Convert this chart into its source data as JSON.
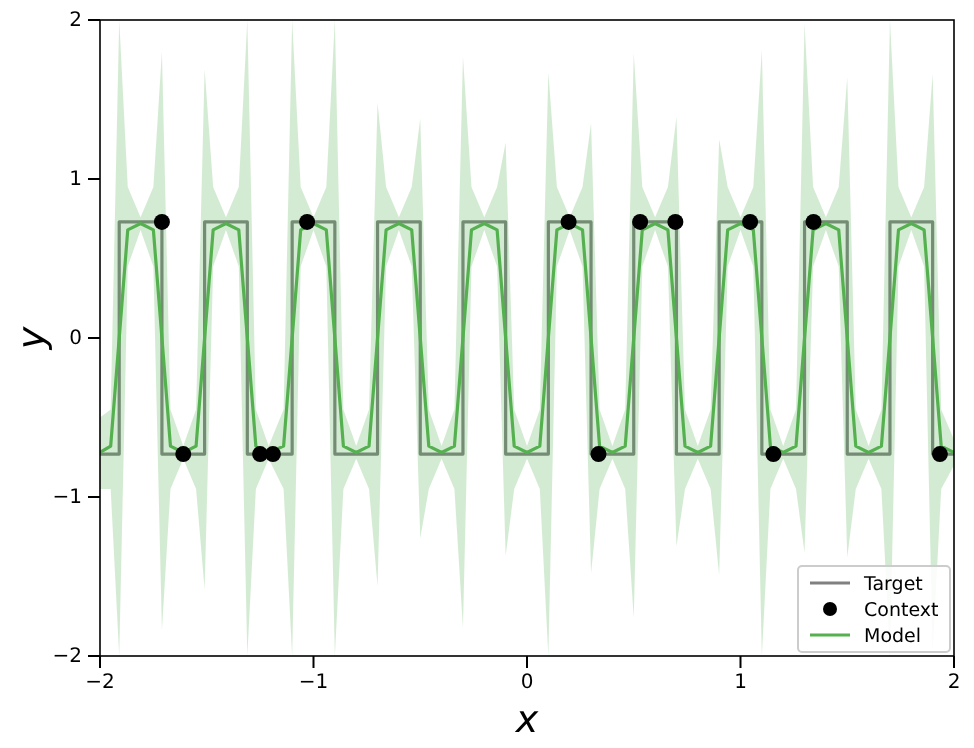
{
  "chart_data": {
    "type": "line",
    "xlabel": "x",
    "ylabel": "y",
    "xlim": [
      -2,
      2
    ],
    "ylim": [
      -2,
      2
    ],
    "xticks": [
      -2,
      -1,
      0,
      1,
      2
    ],
    "yticks": [
      -2,
      -1,
      0,
      1,
      2
    ],
    "grid": false,
    "legend": "bottom right",
    "series": [
      {
        "name": "Target",
        "color": "#808080",
        "x": [
          -2,
          -1.91,
          -1.91,
          -1.71,
          -1.71,
          -1.51,
          -1.51,
          -1.31,
          -1.31,
          -1.1,
          -1.1,
          -0.9,
          -0.9,
          -0.7,
          -0.7,
          -0.5,
          -0.5,
          -0.3,
          -0.3,
          -0.1,
          -0.1,
          0.1,
          0.1,
          0.3,
          0.3,
          0.5,
          0.5,
          0.7,
          0.7,
          0.9,
          0.9,
          1.1,
          1.1,
          1.3,
          1.3,
          1.5,
          1.5,
          1.7,
          1.7,
          1.9,
          1.9,
          2
        ],
        "values": [
          -0.73,
          -0.73,
          0.73,
          0.73,
          -0.73,
          -0.73,
          0.73,
          0.73,
          -0.73,
          -0.73,
          0.73,
          0.73,
          -0.73,
          -0.73,
          0.73,
          0.73,
          -0.73,
          -0.73,
          0.73,
          0.73,
          -0.73,
          -0.73,
          0.73,
          0.73,
          -0.73,
          -0.73,
          0.73,
          0.73,
          -0.73,
          -0.73,
          0.73,
          0.73,
          -0.73,
          -0.73,
          0.73,
          0.73,
          -0.73,
          -0.73,
          0.73,
          0.73,
          -0.73,
          -0.73
        ]
      },
      {
        "name": "Context",
        "type": "scatter",
        "color": "#000000",
        "x": [
          -1.71,
          -1.61,
          -1.25,
          -1.19,
          -1.03,
          0.195,
          0.335,
          0.53,
          0.695,
          1.045,
          1.154,
          1.342,
          1.934
        ],
        "values": [
          0.73,
          -0.73,
          -0.73,
          -0.73,
          0.73,
          0.73,
          -0.73,
          0.73,
          0.73,
          0.73,
          -0.73,
          0.73,
          -0.73
        ]
      },
      {
        "name": "Model",
        "color": "#55b04f",
        "x": [
          -2,
          -1.95,
          -1.91,
          -1.87,
          -1.81,
          -1.75,
          -1.71,
          -1.67,
          -1.61,
          -1.55,
          -1.51,
          -1.47,
          -1.41,
          -1.35,
          -1.31,
          -1.27,
          -1.21,
          -1.14,
          -1.1,
          -1.06,
          -1,
          -0.94,
          -0.9,
          -0.86,
          -0.8,
          -0.74,
          -0.7,
          -0.66,
          -0.6,
          -0.54,
          -0.5,
          -0.46,
          -0.4,
          -0.34,
          -0.3,
          -0.26,
          -0.2,
          -0.14,
          -0.1,
          -0.06,
          0,
          0.06,
          0.1,
          0.14,
          0.2,
          0.26,
          0.3,
          0.34,
          0.4,
          0.46,
          0.5,
          0.54,
          0.6,
          0.66,
          0.7,
          0.74,
          0.8,
          0.86,
          0.9,
          0.94,
          1,
          1.06,
          1.1,
          1.14,
          1.2,
          1.26,
          1.3,
          1.34,
          1.4,
          1.46,
          1.5,
          1.54,
          1.6,
          1.66,
          1.7,
          1.74,
          1.8,
          1.86,
          1.9,
          1.94,
          2
        ],
        "values": [
          -0.72,
          -0.68,
          0,
          0.68,
          0.72,
          0.68,
          0,
          -0.68,
          -0.72,
          -0.68,
          0,
          0.68,
          0.72,
          0.68,
          0,
          -0.68,
          -0.72,
          -0.68,
          0,
          0.68,
          0.72,
          0.68,
          0,
          -0.68,
          -0.72,
          -0.68,
          0,
          0.68,
          0.72,
          0.68,
          0,
          -0.68,
          -0.72,
          -0.68,
          0,
          0.68,
          0.72,
          0.68,
          0,
          -0.68,
          -0.72,
          -0.68,
          0,
          0.68,
          0.72,
          0.68,
          0,
          -0.68,
          -0.72,
          -0.68,
          0,
          0.68,
          0.72,
          0.68,
          0,
          -0.68,
          -0.72,
          -0.68,
          0,
          0.68,
          0.72,
          0.68,
          0,
          -0.68,
          -0.72,
          -0.68,
          0,
          0.68,
          0.72,
          0.68,
          0,
          -0.68,
          -0.72,
          -0.68,
          0,
          0.68,
          0.72,
          0.68,
          0,
          -0.68,
          -0.72
        ],
        "lower": [
          -0.95,
          -0.95,
          -2,
          0.45,
          0.68,
          0.45,
          -1.84,
          -0.95,
          -0.76,
          -0.95,
          -1.58,
          0.45,
          0.68,
          0.45,
          -2,
          -0.95,
          -0.76,
          -0.95,
          -2,
          0.45,
          0.68,
          0.45,
          -2,
          -0.95,
          -0.76,
          -0.95,
          -1.56,
          0.45,
          0.68,
          0.45,
          -1.26,
          -0.95,
          -0.76,
          -0.95,
          -1.82,
          0.45,
          0.68,
          0.45,
          -1.37,
          -0.95,
          -0.76,
          -0.95,
          -2,
          0.45,
          0.68,
          0.45,
          -1.48,
          -0.95,
          -0.76,
          -0.95,
          -1.76,
          0.45,
          0.68,
          0.45,
          -1.31,
          -0.95,
          -0.76,
          -0.95,
          -1.49,
          0.45,
          0.68,
          0.45,
          -2,
          -0.95,
          -0.76,
          -0.95,
          -1.35,
          0.45,
          0.68,
          0.45,
          -1.38,
          -0.95,
          -0.76,
          -0.95,
          -2,
          0.45,
          0.68,
          0.45,
          -1.98,
          -0.95,
          -0.8
        ],
        "upper": [
          -0.5,
          -0.45,
          2,
          0.95,
          0.76,
          0.95,
          1.8,
          -0.45,
          -0.68,
          -0.45,
          1.69,
          0.95,
          0.76,
          0.95,
          2,
          -0.45,
          -0.68,
          -0.45,
          2,
          0.95,
          0.76,
          0.95,
          2,
          -0.45,
          -0.68,
          -0.45,
          1.48,
          0.95,
          0.76,
          0.95,
          1.38,
          -0.45,
          -0.68,
          -0.45,
          1.77,
          0.95,
          0.76,
          0.95,
          1.23,
          -0.45,
          -0.68,
          -0.45,
          1.67,
          0.95,
          0.76,
          0.95,
          1.35,
          -0.45,
          -0.68,
          -0.45,
          1.79,
          0.95,
          0.76,
          0.95,
          1.39,
          -0.45,
          -0.68,
          -0.45,
          1.25,
          0.95,
          0.76,
          0.95,
          1.81,
          -0.45,
          -0.68,
          -0.45,
          1.98,
          0.95,
          0.76,
          0.95,
          1.64,
          -0.45,
          -0.68,
          -0.45,
          2,
          0.95,
          0.76,
          0.95,
          1.66,
          -0.45,
          -0.64
        ]
      }
    ]
  }
}
